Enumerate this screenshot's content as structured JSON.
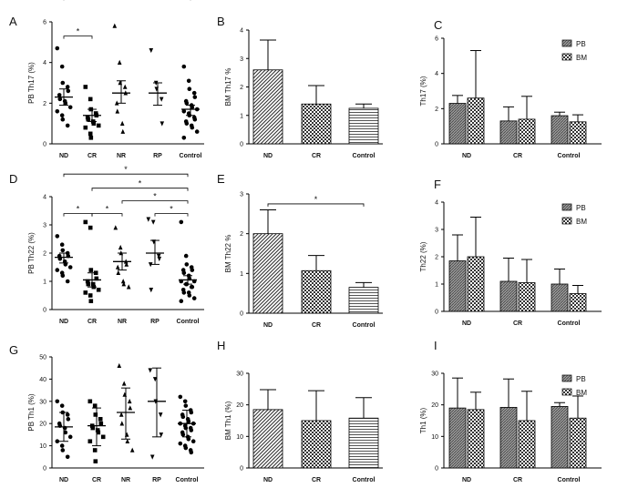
{
  "figure": {
    "panel_labels": [
      "A",
      "B",
      "C",
      "D",
      "E",
      "F",
      "G",
      "H",
      "I"
    ],
    "significance_mark": "*"
  },
  "chart_data": [
    {
      "panel": "A",
      "type": "scatter",
      "ylabel": "PB Th17 (%)",
      "categories": [
        "ND",
        "CR",
        "NR",
        "RP",
        "Control"
      ],
      "ylim": [
        0,
        6
      ],
      "yticks": [
        "0",
        "2",
        "4",
        "6"
      ],
      "markers": [
        "circle",
        "square",
        "triangle-up",
        "triangle-down",
        "circle"
      ],
      "groups": [
        {
          "category": "ND",
          "points": [
            4.7,
            3.8,
            3.0,
            2.8,
            2.6,
            2.4,
            2.2,
            2.1,
            2.0,
            1.8,
            1.6,
            1.4,
            1.2,
            0.9
          ],
          "mean": 2.3,
          "sem_low": 1.9,
          "sem_high": 2.7
        },
        {
          "category": "CR",
          "points": [
            2.8,
            2.2,
            1.7,
            1.5,
            1.4,
            1.3,
            1.2,
            1.1,
            1.0,
            0.9,
            0.8,
            0.5,
            0.3
          ],
          "mean": 1.4,
          "sem_low": 1.1,
          "sem_high": 1.7
        },
        {
          "category": "NR",
          "points": [
            5.8,
            4.0,
            3.0,
            2.8,
            2.5,
            2.0,
            1.6,
            1.0,
            0.6
          ],
          "mean": 2.5,
          "sem_low": 2.0,
          "sem_high": 3.1
        },
        {
          "category": "RP",
          "points": [
            4.6,
            3.0,
            2.7,
            2.2,
            1.0
          ],
          "mean": 2.5,
          "sem_low": 1.9,
          "sem_high": 3.0
        },
        {
          "category": "Control",
          "points": [
            3.8,
            3.1,
            2.7,
            2.5,
            2.3,
            2.1,
            2.0,
            1.9,
            1.8,
            1.7,
            1.6,
            1.5,
            1.4,
            1.3,
            1.2,
            1.1,
            1.0,
            0.9,
            0.8,
            0.6,
            0.3
          ],
          "mean": 1.7,
          "sem_low": 1.4,
          "sem_high": 1.9
        }
      ],
      "significance": [
        {
          "from": "CR",
          "to": "ND",
          "level": 5.3
        },
        {
          "from": "ND",
          "to": "Control",
          "level": 7.2
        }
      ]
    },
    {
      "panel": "B",
      "type": "bar",
      "ylabel": "BM Th17 %",
      "categories": [
        "ND",
        "CR",
        "Control"
      ],
      "values": [
        2.6,
        1.4,
        1.25
      ],
      "errors": [
        1.05,
        0.65,
        0.15
      ],
      "ylim": [
        0,
        4
      ],
      "yticks": [
        "0",
        "1",
        "2",
        "3",
        "4"
      ],
      "patterns": [
        "diag",
        "checker",
        "hlines"
      ]
    },
    {
      "panel": "C",
      "type": "bar",
      "ylabel": "Th17 (%)",
      "categories": [
        "ND",
        "CR",
        "Control"
      ],
      "series": [
        {
          "name": "PB",
          "values": [
            2.3,
            1.3,
            1.6
          ],
          "errors": [
            0.45,
            0.8,
            0.2
          ]
        },
        {
          "name": "BM",
          "values": [
            2.6,
            1.4,
            1.25
          ],
          "errors": [
            2.7,
            1.3,
            0.4
          ]
        }
      ],
      "ylim": [
        0,
        6
      ],
      "yticks": [
        "0",
        "2",
        "4",
        "6"
      ],
      "legend": "top-right"
    },
    {
      "panel": "D",
      "type": "scatter",
      "ylabel": "PB Th22 (%)",
      "categories": [
        "ND",
        "CR",
        "NR",
        "RP",
        "Control"
      ],
      "ylim": [
        0,
        4
      ],
      "yticks": [
        "0",
        "1",
        "2",
        "3",
        "4"
      ],
      "markers": [
        "circle",
        "square",
        "triangle-up",
        "triangle-down",
        "circle"
      ],
      "groups": [
        {
          "category": "ND",
          "points": [
            2.6,
            2.3,
            2.1,
            2.0,
            1.9,
            1.9,
            1.8,
            1.7,
            1.6,
            1.5,
            1.4,
            1.3,
            1.2,
            1.0
          ],
          "mean": 1.85,
          "sem_low": 1.65,
          "sem_high": 2.0
        },
        {
          "category": "CR",
          "points": [
            3.1,
            2.9,
            1.4,
            1.3,
            1.1,
            1.0,
            0.9,
            0.9,
            0.8,
            0.7,
            0.6,
            0.5,
            0.3
          ],
          "mean": 1.05,
          "sem_low": 0.8,
          "sem_high": 1.3
        },
        {
          "category": "NR",
          "points": [
            2.9,
            2.2,
            2.0,
            1.7,
            1.6,
            1.5,
            1.3,
            1.0,
            0.9,
            0.8
          ],
          "mean": 1.7,
          "sem_low": 1.4,
          "sem_high": 2.0
        },
        {
          "category": "RP",
          "points": [
            3.2,
            3.1,
            2.4,
            1.9,
            1.8,
            1.6,
            0.7
          ],
          "mean": 2.0,
          "sem_low": 1.6,
          "sem_high": 2.45
        },
        {
          "category": "Control",
          "points": [
            3.1,
            1.9,
            1.6,
            1.5,
            1.4,
            1.4,
            1.3,
            1.2,
            1.1,
            1.0,
            1.0,
            0.9,
            0.9,
            0.8,
            0.8,
            0.7,
            0.6,
            0.6,
            0.5,
            0.4,
            0.3
          ],
          "mean": 1.05,
          "sem_low": 0.9,
          "sem_high": 1.2
        }
      ],
      "significance": [
        {
          "from": "ND",
          "to": "Control",
          "level": 4.8
        },
        {
          "from": "CR",
          "to": "Control",
          "level": 4.3
        },
        {
          "from": "NR",
          "to": "Control",
          "level": 3.85
        },
        {
          "from": "ND",
          "to": "CR",
          "level": 3.4
        },
        {
          "from": "CR",
          "to": "NR",
          "level": 3.4
        },
        {
          "from": "RP",
          "to": "Control",
          "level": 3.4
        }
      ]
    },
    {
      "panel": "E",
      "type": "bar",
      "ylabel": "BM Th22 %",
      "categories": [
        "ND",
        "CR",
        "Control"
      ],
      "values": [
        2.0,
        1.07,
        0.65
      ],
      "errors": [
        0.6,
        0.38,
        0.12
      ],
      "ylim": [
        0,
        3
      ],
      "yticks": [
        "0",
        "1",
        "2",
        "3"
      ],
      "patterns": [
        "diag",
        "checker",
        "hlines"
      ],
      "significance": [
        {
          "from": "ND",
          "to": "Control",
          "level": 2.75
        }
      ]
    },
    {
      "panel": "F",
      "type": "bar",
      "ylabel": "Th22 (%)",
      "categories": [
        "ND",
        "CR",
        "Control"
      ],
      "series": [
        {
          "name": "PB",
          "values": [
            1.85,
            1.1,
            1.0
          ],
          "errors": [
            0.95,
            0.85,
            0.55
          ]
        },
        {
          "name": "BM",
          "values": [
            2.0,
            1.05,
            0.65
          ],
          "errors": [
            1.45,
            0.85,
            0.3
          ]
        }
      ],
      "ylim": [
        0,
        4
      ],
      "yticks": [
        "0",
        "1",
        "2",
        "3",
        "4"
      ],
      "legend": "top-right"
    },
    {
      "panel": "G",
      "type": "scatter",
      "ylabel": "PB Th1 (%)",
      "categories": [
        "ND",
        "CR",
        "NR",
        "RP",
        "Control"
      ],
      "ylim": [
        0,
        50
      ],
      "yticks": [
        "0",
        "10",
        "20",
        "30",
        "40",
        "50"
      ],
      "markers": [
        "circle",
        "square",
        "triangle-up",
        "triangle-down",
        "circle"
      ],
      "groups": [
        {
          "category": "ND",
          "points": [
            30,
            28,
            25,
            24,
            22,
            20,
            19,
            18,
            16,
            14,
            12,
            10,
            8,
            5
          ],
          "mean": 18.5,
          "sd_low": 12,
          "sd_high": 25
        },
        {
          "category": "CR",
          "points": [
            30,
            28,
            24,
            22,
            20,
            19,
            18,
            17,
            16,
            14,
            12,
            8,
            3
          ],
          "mean": 19,
          "sd_low": 10,
          "sd_high": 27
        },
        {
          "category": "NR",
          "points": [
            46,
            38,
            33,
            30,
            27,
            24,
            20,
            15,
            12,
            8
          ],
          "mean": 25,
          "sd_low": 13,
          "sd_high": 36
        },
        {
          "category": "RP",
          "points": [
            44,
            40,
            30,
            24,
            15,
            5
          ],
          "mean": 30,
          "sd_low": 14,
          "sd_high": 45
        },
        {
          "category": "Control",
          "points": [
            32,
            30,
            28,
            26,
            25,
            24,
            23,
            22,
            21,
            20,
            20,
            19,
            18,
            18,
            17,
            16,
            15,
            14,
            13,
            12,
            11,
            10,
            9,
            8,
            7
          ],
          "mean": 20,
          "sd_low": 14,
          "sd_high": 26
        }
      ]
    },
    {
      "panel": "H",
      "type": "bar",
      "ylabel": "BM Th1 (%)",
      "categories": [
        "ND",
        "CR",
        "Control"
      ],
      "values": [
        18.5,
        15.0,
        15.8
      ],
      "errors": [
        6.3,
        9.5,
        6.5
      ],
      "ylim": [
        0,
        30
      ],
      "yticks": [
        "0",
        "10",
        "20",
        "30"
      ],
      "patterns": [
        "diag",
        "checker",
        "hlines"
      ]
    },
    {
      "panel": "I",
      "type": "bar",
      "ylabel": "Th1 (%)",
      "categories": [
        "ND",
        "CR",
        "Control"
      ],
      "series": [
        {
          "name": "PB",
          "values": [
            19.0,
            19.2,
            19.5
          ],
          "errors": [
            9.5,
            9.0,
            1.2
          ]
        },
        {
          "name": "BM",
          "values": [
            18.5,
            15.0,
            15.8
          ],
          "errors": [
            5.5,
            9.3,
            7.0
          ]
        }
      ],
      "ylim": [
        0,
        30
      ],
      "yticks": [
        "0",
        "10",
        "20",
        "30"
      ],
      "legend": "top-right"
    }
  ]
}
